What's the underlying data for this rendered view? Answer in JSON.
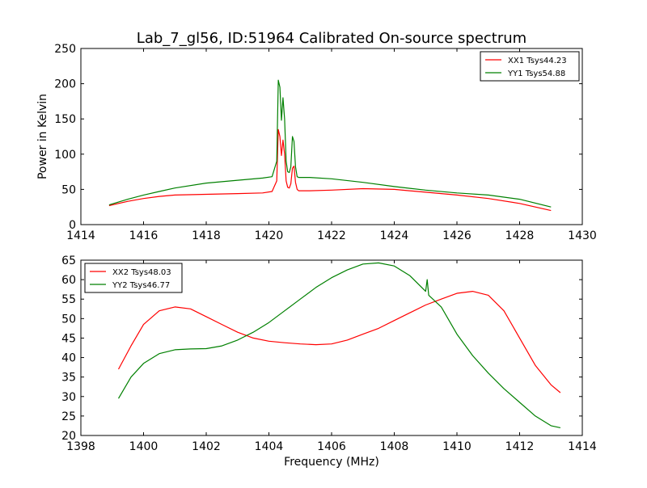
{
  "title": "Lab_7_gl56, ID:51964 Calibrated On-source spectrum",
  "xlabel": "Frequency (MHz)",
  "chart_data": [
    {
      "type": "line",
      "title": "Lab_7_gl56, ID:51964 Calibrated On-source spectrum",
      "xlabel": "",
      "ylabel": "Power in Kelvin",
      "xlim": [
        1414,
        1430
      ],
      "ylim": [
        0,
        250
      ],
      "xticks": [
        "1414",
        "1416",
        "1418",
        "1420",
        "1422",
        "1424",
        "1426",
        "1428",
        "1430"
      ],
      "yticks": [
        "0",
        "50",
        "100",
        "150",
        "200",
        "250"
      ],
      "grid": false,
      "legend_position": "top-right",
      "series": [
        {
          "name": "XX1 Tsys44.23",
          "color": "#ff0000",
          "x": [
            1414.9,
            1415.5,
            1416.0,
            1416.5,
            1417.0,
            1418.0,
            1419.0,
            1419.8,
            1420.1,
            1420.25,
            1420.3,
            1420.35,
            1420.4,
            1420.45,
            1420.5,
            1420.55,
            1420.6,
            1420.65,
            1420.7,
            1420.75,
            1420.8,
            1420.85,
            1420.9,
            1420.95,
            1421.0,
            1421.1,
            1421.3,
            1422.0,
            1423.0,
            1424.0,
            1425.0,
            1426.0,
            1427.0,
            1428.0,
            1429.0
          ],
          "y": [
            27,
            33,
            37,
            40,
            42,
            43,
            44,
            45,
            47,
            62,
            135,
            125,
            98,
            120,
            100,
            62,
            53,
            52,
            58,
            80,
            83,
            60,
            50,
            48,
            48,
            48,
            48,
            49,
            51,
            50,
            46,
            42,
            37,
            30,
            20
          ]
        },
        {
          "name": "YY1 Tsys54.88",
          "color": "#008000",
          "x": [
            1414.9,
            1415.5,
            1416.0,
            1416.5,
            1417.0,
            1418.0,
            1419.0,
            1419.8,
            1420.1,
            1420.25,
            1420.3,
            1420.35,
            1420.4,
            1420.45,
            1420.5,
            1420.55,
            1420.6,
            1420.65,
            1420.7,
            1420.75,
            1420.8,
            1420.85,
            1420.9,
            1420.95,
            1421.0,
            1421.1,
            1421.3,
            1422.0,
            1423.0,
            1424.0,
            1425.0,
            1426.0,
            1427.0,
            1428.0,
            1429.0
          ],
          "y": [
            28,
            36,
            42,
            47,
            52,
            59,
            63,
            66,
            68,
            90,
            205,
            195,
            148,
            180,
            150,
            90,
            75,
            74,
            82,
            125,
            118,
            82,
            68,
            67,
            67,
            67,
            67,
            65,
            60,
            54,
            49,
            45,
            42,
            36,
            25
          ]
        }
      ]
    },
    {
      "type": "line",
      "title": "",
      "xlabel": "Frequency (MHz)",
      "ylabel": "",
      "xlim": [
        1398,
        1414
      ],
      "ylim": [
        20,
        65
      ],
      "xticks": [
        "1398",
        "1400",
        "1402",
        "1404",
        "1406",
        "1408",
        "1410",
        "1412",
        "1414"
      ],
      "yticks": [
        "20",
        "25",
        "30",
        "35",
        "40",
        "45",
        "50",
        "55",
        "60",
        "65"
      ],
      "grid": false,
      "legend_position": "top-left",
      "series": [
        {
          "name": "XX2 Tsys48.03",
          "color": "#ff0000",
          "x": [
            1399.2,
            1399.6,
            1400.0,
            1400.5,
            1401.0,
            1401.5,
            1402.0,
            1402.5,
            1403.0,
            1403.5,
            1404.0,
            1404.5,
            1405.0,
            1405.5,
            1406.0,
            1406.5,
            1407.0,
            1407.5,
            1408.0,
            1408.5,
            1409.0,
            1409.5,
            1410.0,
            1410.5,
            1411.0,
            1411.5,
            1412.0,
            1412.5,
            1413.0,
            1413.3
          ],
          "y": [
            37,
            43,
            48.5,
            52,
            53,
            52.5,
            50.5,
            48.5,
            46.5,
            45,
            44.2,
            43.8,
            43.5,
            43.3,
            43.5,
            44.5,
            46,
            47.5,
            49.5,
            51.5,
            53.5,
            55,
            56.5,
            57,
            56,
            52,
            45,
            38,
            33,
            31
          ]
        },
        {
          "name": "YY2 Tsys46.77",
          "color": "#008000",
          "x": [
            1399.2,
            1399.6,
            1400.0,
            1400.5,
            1401.0,
            1401.5,
            1402.0,
            1402.5,
            1403.0,
            1403.5,
            1404.0,
            1404.5,
            1405.0,
            1405.5,
            1406.0,
            1406.5,
            1407.0,
            1407.5,
            1408.0,
            1408.5,
            1409.0,
            1409.05,
            1409.1,
            1409.5,
            1410.0,
            1410.5,
            1411.0,
            1411.5,
            1412.0,
            1412.5,
            1413.0,
            1413.3
          ],
          "y": [
            29.5,
            35,
            38.5,
            41,
            42,
            42.2,
            42.3,
            43,
            44.5,
            46.5,
            49,
            52,
            55,
            58,
            60.5,
            62.5,
            64,
            64.3,
            63.5,
            61,
            57,
            60,
            56,
            53,
            46,
            40.5,
            36,
            32,
            28.5,
            25,
            22.5,
            22
          ]
        }
      ]
    }
  ]
}
